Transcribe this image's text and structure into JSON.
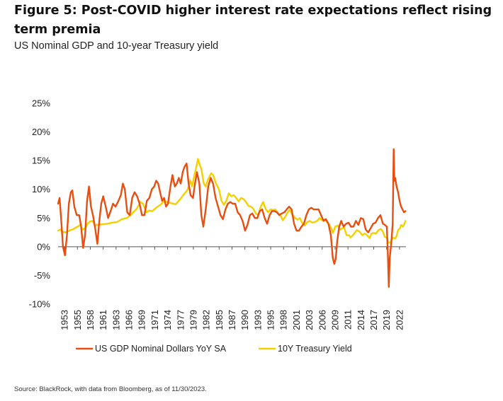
{
  "header": {
    "title": "Figure 5: Post-COVID higher interest rate expectations reflect rising term premia",
    "subtitle": "US Nominal GDP and 10-year Treasury yield"
  },
  "footer": {
    "source": "Source: BlackRock, with data from Bloomberg, as of 11/30/2023."
  },
  "colors": {
    "gdp": "#e84e0f",
    "treasury": "#f5d000",
    "axis": "#555555"
  },
  "chart_data": {
    "type": "line",
    "title": "",
    "xlabel": "",
    "ylabel": "",
    "ylim": [
      -10,
      25
    ],
    "xlim": [
      1953,
      2023.9
    ],
    "yticks": [
      -10,
      -5,
      0,
      5,
      10,
      15,
      20,
      25
    ],
    "ytick_labels": [
      "-10%",
      "-5%",
      "0%",
      "5%",
      "10%",
      "15%",
      "20%",
      "25%"
    ],
    "xtick_labels": [
      "1953",
      "1955",
      "1958",
      "1961",
      "1963",
      "1966",
      "1969",
      "1971",
      "1974",
      "1977",
      "1979",
      "1982",
      "1985",
      "1987",
      "1990",
      "1993",
      "1995",
      "1998",
      "2001",
      "2003",
      "2006",
      "2009",
      "2011",
      "2014",
      "2017",
      "2019",
      "2022"
    ],
    "grid": false,
    "legend_position": "bottom",
    "series": [
      {
        "name": "US GDP Nominal Dollars YoY SA",
        "points": [
          [
            1953.0,
            7.5
          ],
          [
            1953.3,
            8.5
          ],
          [
            1953.6,
            5.0
          ],
          [
            1954.0,
            0.0
          ],
          [
            1954.4,
            -1.5
          ],
          [
            1954.8,
            2.0
          ],
          [
            1955.2,
            7.5
          ],
          [
            1955.6,
            9.5
          ],
          [
            1955.9,
            9.8
          ],
          [
            1956.3,
            7.0
          ],
          [
            1956.8,
            5.5
          ],
          [
            1957.3,
            5.5
          ],
          [
            1957.7,
            3.5
          ],
          [
            1958.1,
            -0.2
          ],
          [
            1958.5,
            2.0
          ],
          [
            1958.9,
            8.0
          ],
          [
            1959.3,
            10.5
          ],
          [
            1959.7,
            7.0
          ],
          [
            1960.1,
            5.5
          ],
          [
            1960.6,
            3.0
          ],
          [
            1961.0,
            0.5
          ],
          [
            1961.4,
            4.5
          ],
          [
            1961.8,
            7.5
          ],
          [
            1962.2,
            8.8
          ],
          [
            1962.7,
            7.0
          ],
          [
            1963.2,
            5.0
          ],
          [
            1963.7,
            6.2
          ],
          [
            1964.2,
            7.5
          ],
          [
            1964.7,
            7.0
          ],
          [
            1965.2,
            7.8
          ],
          [
            1965.8,
            9.0
          ],
          [
            1966.2,
            11.0
          ],
          [
            1966.6,
            10.0
          ],
          [
            1967.1,
            6.0
          ],
          [
            1967.6,
            5.5
          ],
          [
            1968.1,
            8.5
          ],
          [
            1968.6,
            9.5
          ],
          [
            1969.1,
            8.8
          ],
          [
            1969.6,
            7.5
          ],
          [
            1970.1,
            5.5
          ],
          [
            1970.6,
            5.5
          ],
          [
            1971.1,
            8.0
          ],
          [
            1971.6,
            8.5
          ],
          [
            1972.1,
            10.0
          ],
          [
            1972.6,
            10.5
          ],
          [
            1973.0,
            11.5
          ],
          [
            1973.4,
            11.0
          ],
          [
            1973.8,
            9.5
          ],
          [
            1974.2,
            8.0
          ],
          [
            1974.6,
            8.5
          ],
          [
            1975.0,
            7.0
          ],
          [
            1975.4,
            7.5
          ],
          [
            1975.9,
            10.5
          ],
          [
            1976.3,
            12.5
          ],
          [
            1976.8,
            10.5
          ],
          [
            1977.2,
            11.0
          ],
          [
            1977.6,
            12.0
          ],
          [
            1978.0,
            11.0
          ],
          [
            1978.4,
            13.0
          ],
          [
            1978.8,
            14.0
          ],
          [
            1979.2,
            14.5
          ],
          [
            1979.6,
            11.0
          ],
          [
            1980.0,
            9.0
          ],
          [
            1980.5,
            8.5
          ],
          [
            1980.9,
            11.0
          ],
          [
            1981.3,
            13.0
          ],
          [
            1981.8,
            11.0
          ],
          [
            1982.2,
            5.5
          ],
          [
            1982.6,
            3.5
          ],
          [
            1983.1,
            6.5
          ],
          [
            1983.6,
            10.5
          ],
          [
            1984.1,
            12.0
          ],
          [
            1984.6,
            11.0
          ],
          [
            1985.1,
            8.5
          ],
          [
            1985.6,
            7.0
          ],
          [
            1986.1,
            5.5
          ],
          [
            1986.6,
            4.8
          ],
          [
            1987.1,
            6.5
          ],
          [
            1987.6,
            7.5
          ],
          [
            1988.1,
            7.8
          ],
          [
            1988.6,
            7.5
          ],
          [
            1989.1,
            7.5
          ],
          [
            1989.6,
            6.0
          ],
          [
            1990.1,
            5.5
          ],
          [
            1990.6,
            4.5
          ],
          [
            1991.1,
            2.8
          ],
          [
            1991.6,
            3.8
          ],
          [
            1992.1,
            5.5
          ],
          [
            1992.6,
            5.8
          ],
          [
            1993.1,
            5.0
          ],
          [
            1993.6,
            5.0
          ],
          [
            1994.1,
            6.2
          ],
          [
            1994.6,
            6.5
          ],
          [
            1995.1,
            5.0
          ],
          [
            1995.6,
            4.0
          ],
          [
            1996.1,
            5.5
          ],
          [
            1996.6,
            6.2
          ],
          [
            1997.1,
            6.2
          ],
          [
            1997.6,
            6.0
          ],
          [
            1998.1,
            5.5
          ],
          [
            1998.6,
            5.8
          ],
          [
            1999.1,
            6.0
          ],
          [
            1999.6,
            6.5
          ],
          [
            2000.1,
            7.0
          ],
          [
            2000.6,
            6.5
          ],
          [
            2001.1,
            4.0
          ],
          [
            2001.6,
            2.8
          ],
          [
            2002.1,
            2.8
          ],
          [
            2002.6,
            3.5
          ],
          [
            2003.1,
            4.0
          ],
          [
            2003.6,
            5.5
          ],
          [
            2004.1,
            6.5
          ],
          [
            2004.6,
            6.8
          ],
          [
            2005.1,
            6.5
          ],
          [
            2005.6,
            6.5
          ],
          [
            2006.1,
            6.5
          ],
          [
            2006.6,
            5.5
          ],
          [
            2007.1,
            4.5
          ],
          [
            2007.6,
            4.8
          ],
          [
            2008.1,
            4.0
          ],
          [
            2008.6,
            2.0
          ],
          [
            2009.0,
            -2.0
          ],
          [
            2009.3,
            -3.0
          ],
          [
            2009.6,
            -2.0
          ],
          [
            2009.9,
            1.0
          ],
          [
            2010.3,
            3.5
          ],
          [
            2010.7,
            4.5
          ],
          [
            2011.2,
            3.5
          ],
          [
            2011.7,
            4.0
          ],
          [
            2012.2,
            4.2
          ],
          [
            2012.7,
            3.5
          ],
          [
            2013.2,
            3.5
          ],
          [
            2013.7,
            4.5
          ],
          [
            2014.2,
            3.8
          ],
          [
            2014.7,
            5.0
          ],
          [
            2015.2,
            4.8
          ],
          [
            2015.7,
            3.0
          ],
          [
            2016.2,
            2.5
          ],
          [
            2016.7,
            3.2
          ],
          [
            2017.2,
            4.0
          ],
          [
            2017.7,
            4.2
          ],
          [
            2018.2,
            5.0
          ],
          [
            2018.7,
            5.5
          ],
          [
            2019.2,
            4.0
          ],
          [
            2019.6,
            3.8
          ],
          [
            2020.0,
            3.5
          ],
          [
            2020.2,
            -1.0
          ],
          [
            2020.4,
            -7.0
          ],
          [
            2020.6,
            -2.0
          ],
          [
            2020.9,
            0.5
          ],
          [
            2021.2,
            4.0
          ],
          [
            2021.4,
            17.0
          ],
          [
            2021.55,
            11.5
          ],
          [
            2021.7,
            12.0
          ],
          [
            2022.0,
            10.5
          ],
          [
            2022.3,
            9.5
          ],
          [
            2022.6,
            8.0
          ],
          [
            2022.9,
            7.0
          ],
          [
            2023.2,
            6.5
          ],
          [
            2023.5,
            6.0
          ],
          [
            2023.8,
            6.2
          ]
        ]
      },
      {
        "name": "10Y Treasury Yield",
        "points": [
          [
            1953.0,
            2.8
          ],
          [
            1953.5,
            3.0
          ],
          [
            1954.0,
            2.6
          ],
          [
            1954.5,
            2.5
          ],
          [
            1955.0,
            2.7
          ],
          [
            1955.5,
            2.9
          ],
          [
            1956.0,
            3.0
          ],
          [
            1956.5,
            3.3
          ],
          [
            1957.0,
            3.5
          ],
          [
            1957.5,
            3.8
          ],
          [
            1958.0,
            3.0
          ],
          [
            1958.5,
            3.2
          ],
          [
            1959.0,
            4.0
          ],
          [
            1959.5,
            4.4
          ],
          [
            1960.0,
            4.5
          ],
          [
            1960.5,
            3.8
          ],
          [
            1961.0,
            3.8
          ],
          [
            1962.0,
            3.9
          ],
          [
            1963.0,
            4.0
          ],
          [
            1964.0,
            4.2
          ],
          [
            1965.0,
            4.3
          ],
          [
            1966.0,
            4.8
          ],
          [
            1967.0,
            5.0
          ],
          [
            1968.0,
            5.7
          ],
          [
            1969.0,
            6.6
          ],
          [
            1969.8,
            7.8
          ],
          [
            1970.3,
            7.5
          ],
          [
            1971.0,
            6.0
          ],
          [
            1971.6,
            6.3
          ],
          [
            1972.2,
            6.2
          ],
          [
            1973.0,
            6.8
          ],
          [
            1974.0,
            7.4
          ],
          [
            1974.6,
            8.0
          ],
          [
            1975.2,
            7.8
          ],
          [
            1976.0,
            7.6
          ],
          [
            1977.0,
            7.4
          ],
          [
            1978.0,
            8.4
          ],
          [
            1978.7,
            9.2
          ],
          [
            1979.3,
            9.8
          ],
          [
            1980.0,
            11.5
          ],
          [
            1980.3,
            10.5
          ],
          [
            1980.8,
            12.5
          ],
          [
            1981.2,
            14.0
          ],
          [
            1981.5,
            15.3
          ],
          [
            1981.8,
            14.5
          ],
          [
            1982.2,
            13.5
          ],
          [
            1982.7,
            11.0
          ],
          [
            1983.1,
            10.5
          ],
          [
            1983.6,
            11.8
          ],
          [
            1984.2,
            12.8
          ],
          [
            1984.6,
            12.5
          ],
          [
            1985.2,
            11.0
          ],
          [
            1985.8,
            10.0
          ],
          [
            1986.3,
            8.0
          ],
          [
            1986.8,
            7.3
          ],
          [
            1987.3,
            8.0
          ],
          [
            1987.8,
            9.3
          ],
          [
            1988.3,
            8.8
          ],
          [
            1988.8,
            9.0
          ],
          [
            1989.3,
            8.5
          ],
          [
            1989.8,
            7.9
          ],
          [
            1990.3,
            8.5
          ],
          [
            1990.8,
            8.3
          ],
          [
            1991.3,
            7.8
          ],
          [
            1991.8,
            7.1
          ],
          [
            1992.3,
            7.0
          ],
          [
            1992.8,
            6.6
          ],
          [
            1993.3,
            5.8
          ],
          [
            1993.8,
            5.5
          ],
          [
            1994.3,
            7.0
          ],
          [
            1994.8,
            7.8
          ],
          [
            1995.3,
            6.6
          ],
          [
            1995.8,
            6.0
          ],
          [
            1996.3,
            6.5
          ],
          [
            1996.8,
            6.4
          ],
          [
            1997.3,
            6.5
          ],
          [
            1997.8,
            5.8
          ],
          [
            1998.3,
            5.5
          ],
          [
            1998.8,
            4.6
          ],
          [
            1999.3,
            5.2
          ],
          [
            1999.8,
            6.0
          ],
          [
            2000.2,
            6.4
          ],
          [
            2000.8,
            5.5
          ],
          [
            2001.3,
            5.0
          ],
          [
            2001.8,
            4.7
          ],
          [
            2002.3,
            5.0
          ],
          [
            2002.8,
            4.0
          ],
          [
            2003.3,
            3.7
          ],
          [
            2003.8,
            4.3
          ],
          [
            2004.3,
            4.5
          ],
          [
            2004.8,
            4.2
          ],
          [
            2005.3,
            4.3
          ],
          [
            2005.8,
            4.5
          ],
          [
            2006.3,
            5.0
          ],
          [
            2006.8,
            4.6
          ],
          [
            2007.3,
            4.8
          ],
          [
            2007.8,
            4.3
          ],
          [
            2008.3,
            3.8
          ],
          [
            2008.8,
            3.0
          ],
          [
            2009.0,
            2.4
          ],
          [
            2009.5,
            3.5
          ],
          [
            2010.0,
            3.7
          ],
          [
            2010.5,
            3.0
          ],
          [
            2010.9,
            3.2
          ],
          [
            2011.3,
            3.4
          ],
          [
            2011.8,
            2.0
          ],
          [
            2012.3,
            2.0
          ],
          [
            2012.6,
            1.6
          ],
          [
            2013.0,
            1.9
          ],
          [
            2013.5,
            2.5
          ],
          [
            2013.9,
            2.9
          ],
          [
            2014.5,
            2.6
          ],
          [
            2015.0,
            2.0
          ],
          [
            2015.5,
            2.3
          ],
          [
            2016.0,
            2.0
          ],
          [
            2016.5,
            1.5
          ],
          [
            2016.9,
            2.3
          ],
          [
            2017.3,
            2.4
          ],
          [
            2017.8,
            2.3
          ],
          [
            2018.3,
            2.9
          ],
          [
            2018.8,
            3.1
          ],
          [
            2019.2,
            2.6
          ],
          [
            2019.6,
            1.7
          ],
          [
            2020.0,
            1.6
          ],
          [
            2020.3,
            0.7
          ],
          [
            2020.7,
            0.7
          ],
          [
            2021.0,
            1.2
          ],
          [
            2021.3,
            1.6
          ],
          [
            2021.7,
            1.4
          ],
          [
            2022.0,
            1.9
          ],
          [
            2022.3,
            2.9
          ],
          [
            2022.7,
            3.2
          ],
          [
            2022.9,
            3.8
          ],
          [
            2023.3,
            3.5
          ],
          [
            2023.6,
            4.0
          ],
          [
            2023.8,
            4.5
          ]
        ]
      }
    ]
  }
}
